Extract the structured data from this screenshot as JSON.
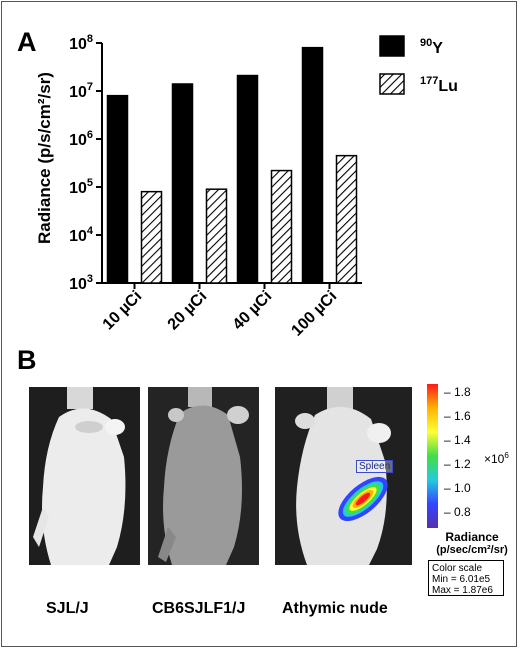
{
  "panels": {
    "a_label": "A",
    "b_label": "B"
  },
  "chart_data": {
    "type": "bar",
    "ylabel": "Radiance (p/s/cm²/sr)",
    "yscale": "log",
    "ylim": [
      1000,
      100000000
    ],
    "ytick_labels": [
      {
        "base": "10",
        "exp": "3"
      },
      {
        "base": "10",
        "exp": "4"
      },
      {
        "base": "10",
        "exp": "5"
      },
      {
        "base": "10",
        "exp": "6"
      },
      {
        "base": "10",
        "exp": "7"
      },
      {
        "base": "10",
        "exp": "8"
      }
    ],
    "categories": [
      "10 µCi",
      "20 µCi",
      "40 µCi",
      "100 µCi"
    ],
    "series": [
      {
        "name_sup": "90",
        "name_main": "Y",
        "fill": "solid-black",
        "values": [
          8000000,
          14000000,
          21000000,
          80000000
        ]
      },
      {
        "name_sup": "177",
        "name_main": "Lu",
        "fill": "diagonal-hatch",
        "values": [
          80000,
          90000,
          220000,
          450000
        ]
      }
    ],
    "legend_position": "top-right",
    "grid": false
  },
  "imaging": {
    "mice": [
      {
        "label": "SJL/J",
        "fur": "white"
      },
      {
        "label": "CB6SJLF1/J",
        "fur": "gray"
      },
      {
        "label": "Athymic nude",
        "fur": "hairless"
      }
    ],
    "organ_label": "Spleen",
    "colorbar": {
      "ticks": [
        "1.8",
        "1.6",
        "1.4",
        "1.2",
        "1.0",
        "0.8"
      ],
      "multiplier_base": "×10",
      "multiplier_exp": "6",
      "title": "Radiance",
      "unit": "(p/sec/cm²/sr)",
      "colors": [
        "#ff1a1a",
        "#ffb300",
        "#ffff33",
        "#44dd44",
        "#22ccdd",
        "#3344ff",
        "#5533aa"
      ]
    },
    "color_scale_box": {
      "title": "Color scale",
      "min": "Min = 6.01e5",
      "max": "Max = 1.87e6"
    }
  }
}
